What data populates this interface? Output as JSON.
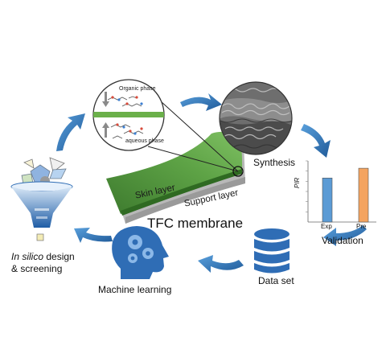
{
  "steps": {
    "synthesis": "Synthesis",
    "validation": "Validation",
    "data_set": "Data set",
    "machine_learning": "Machine learning",
    "in_silico_italic": "In silico",
    "in_silico_rest": " design",
    "screening": "& screening"
  },
  "membrane": {
    "title": "TFC membrane",
    "skin_layer": "Skin layer",
    "support_layer": "Support layer",
    "organic_phase": "Organic phase",
    "aqueous_phase": "aqueous phase"
  },
  "chart_data": {
    "type": "bar",
    "categories": [
      "Exp",
      "Pre"
    ],
    "values": [
      0.72,
      0.88
    ],
    "ylabel": "PIR",
    "colors": [
      "#5b9bd5",
      "#f4a460"
    ]
  },
  "colors": {
    "arrow": "#2e75b6",
    "membrane_green": "#4e8f3a",
    "funnel_blue": "#2f6db5",
    "database_blue": "#2f6db5",
    "head_blue": "#2f6db5"
  }
}
